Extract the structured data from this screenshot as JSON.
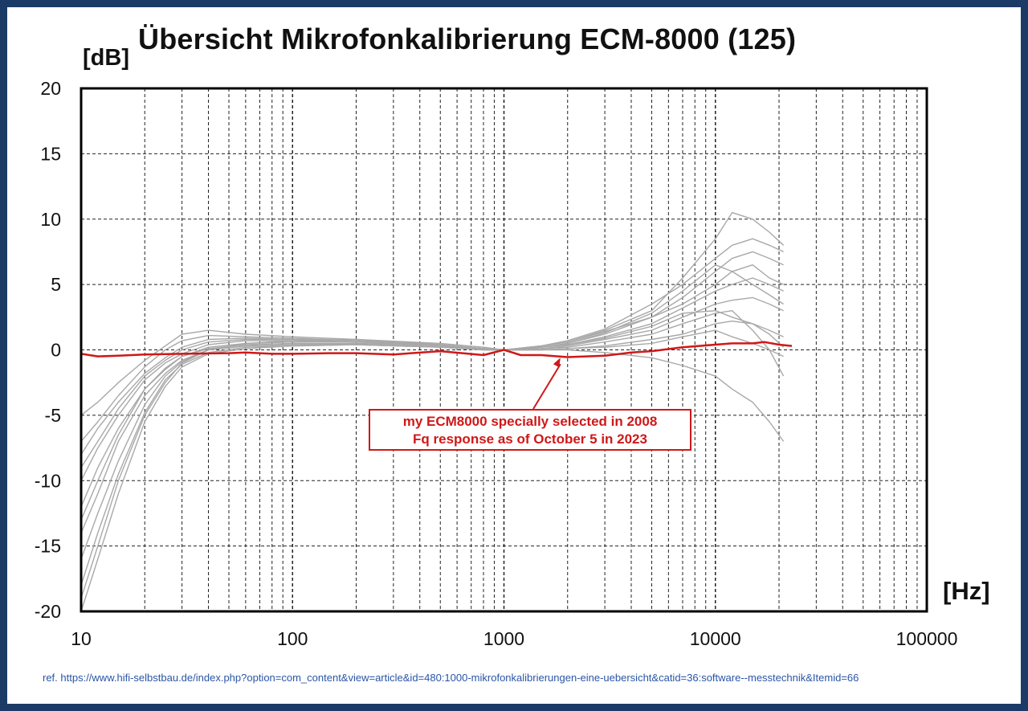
{
  "chart_data": {
    "type": "line",
    "title": "Übersicht Mikrofonkalibrierung ECM-8000 (125)",
    "ylabel": "[dB]",
    "xlabel": "[Hz]",
    "xscale": "log",
    "xlim": [
      10,
      100000
    ],
    "ylim": [
      -20,
      20
    ],
    "x_ticks": [
      10,
      100,
      1000,
      10000,
      100000
    ],
    "x_tick_labels": [
      "10",
      "100",
      "1000",
      "10000",
      "100000"
    ],
    "y_ticks": [
      20,
      15,
      10,
      5,
      0,
      -5,
      -10,
      -15,
      -20
    ],
    "y_tick_labels": [
      "20",
      "15",
      "10",
      "5",
      "0",
      "-5",
      "-10",
      "-15",
      "-20"
    ],
    "grid": true,
    "series": [
      {
        "color": "#d01818",
        "x": [
          10,
          12,
          15,
          20,
          30,
          50,
          60,
          80,
          100,
          150,
          200,
          300,
          500,
          800,
          1000,
          1200,
          1500,
          2000,
          3000,
          4000,
          5000,
          7000,
          10000,
          12000,
          15000,
          17000,
          20000,
          23000
        ],
        "y": [
          -0.3,
          -0.5,
          -0.45,
          -0.35,
          -0.3,
          -0.25,
          -0.2,
          -0.3,
          -0.3,
          -0.25,
          -0.25,
          -0.35,
          -0.1,
          -0.4,
          0.0,
          -0.4,
          -0.4,
          -0.55,
          -0.45,
          -0.2,
          -0.1,
          0.2,
          0.4,
          0.5,
          0.5,
          0.6,
          0.4,
          0.3
        ]
      },
      {
        "color": "#a8a8a8",
        "x": [
          10,
          12,
          15,
          20,
          25,
          30,
          40,
          60,
          100,
          200,
          500,
          800,
          1000,
          1500,
          2000,
          3000,
          5000,
          7000,
          10000,
          12000,
          15000,
          18000,
          21000
        ],
        "y": [
          -12,
          -9,
          -6,
          -3,
          -1.5,
          -0.5,
          0.1,
          0.4,
          0.5,
          0.5,
          0.3,
          0.1,
          0.0,
          0.1,
          0.3,
          0.8,
          1.5,
          2.5,
          3.5,
          3.8,
          4.0,
          3.5,
          3.0
        ]
      },
      {
        "color": "#a8a8a8",
        "x": [
          10,
          12,
          15,
          20,
          25,
          30,
          40,
          60,
          100,
          200,
          500,
          800,
          1000,
          1500,
          2000,
          3000,
          5000,
          7000,
          10000,
          12000,
          15000,
          18000,
          21000
        ],
        "y": [
          -19,
          -15,
          -10,
          -5,
          -2.5,
          -1.0,
          0.0,
          0.5,
          0.7,
          0.8,
          0.4,
          0.1,
          0.0,
          0.3,
          0.6,
          1.5,
          3.0,
          5.5,
          8.5,
          10.5,
          10.0,
          9.0,
          8.0
        ]
      },
      {
        "color": "#a8a8a8",
        "x": [
          10,
          12,
          15,
          20,
          25,
          30,
          40,
          60,
          100,
          200,
          500,
          800,
          1000,
          1500,
          2000,
          3000,
          5000,
          7000,
          10000,
          12000,
          15000,
          18000,
          21000
        ],
        "y": [
          -5,
          -4,
          -2.5,
          -0.8,
          0.3,
          1.2,
          1.5,
          1.2,
          1.0,
          0.8,
          0.5,
          0.2,
          0.0,
          0.0,
          0.1,
          0.2,
          0.5,
          1.0,
          1.5,
          1.0,
          0.5,
          0.0,
          -0.5
        ]
      },
      {
        "color": "#a8a8a8",
        "x": [
          10,
          12,
          15,
          20,
          25,
          30,
          40,
          60,
          100,
          200,
          500,
          800,
          1000,
          1500,
          2000,
          3000,
          5000,
          7000,
          10000,
          12000,
          15000,
          18000,
          21000
        ],
        "y": [
          -14,
          -11,
          -7,
          -3.5,
          -1.8,
          -0.8,
          0.0,
          0.3,
          0.4,
          0.4,
          0.2,
          0.0,
          0.0,
          0.2,
          0.5,
          1.2,
          2.5,
          4.0,
          6.0,
          7.0,
          7.5,
          7.0,
          6.5
        ]
      },
      {
        "color": "#a8a8a8",
        "x": [
          10,
          12,
          15,
          20,
          25,
          30,
          40,
          60,
          100,
          200,
          500,
          800,
          1000,
          1500,
          2000,
          3000,
          5000,
          7000,
          10000,
          12000,
          15000,
          18000,
          21000
        ],
        "y": [
          -8,
          -6,
          -4,
          -1.8,
          -0.6,
          0.2,
          0.8,
          0.9,
          0.8,
          0.7,
          0.4,
          0.1,
          0.0,
          0.0,
          0.0,
          -0.2,
          -0.6,
          -1.2,
          -2.0,
          -3.0,
          -4.0,
          -5.5,
          -7.0
        ]
      },
      {
        "color": "#a8a8a8",
        "x": [
          10,
          12,
          15,
          20,
          25,
          30,
          40,
          60,
          100,
          200,
          500,
          800,
          1000,
          1500,
          2000,
          3000,
          5000,
          7000,
          10000,
          12000,
          15000,
          18000,
          21000
        ],
        "y": [
          -16,
          -12.5,
          -8.5,
          -4.2,
          -2.0,
          -0.9,
          0.0,
          0.3,
          0.4,
          0.5,
          0.3,
          0.0,
          0.0,
          0.2,
          0.4,
          1.0,
          2.0,
          3.2,
          4.5,
          5.0,
          5.5,
          5.0,
          4.5
        ]
      },
      {
        "color": "#a8a8a8",
        "x": [
          10,
          12,
          15,
          20,
          25,
          30,
          40,
          60,
          100,
          200,
          500,
          800,
          1000,
          1500,
          2000,
          3000,
          5000,
          7000,
          10000,
          12000,
          15000,
          18000,
          21000
        ],
        "y": [
          -10,
          -7.5,
          -5,
          -2.3,
          -1.0,
          -0.3,
          0.4,
          0.7,
          0.7,
          0.6,
          0.4,
          0.1,
          0.0,
          0.2,
          0.4,
          0.9,
          1.8,
          2.8,
          3.0,
          2.5,
          2.0,
          1.5,
          1.0
        ]
      },
      {
        "color": "#a8a8a8",
        "x": [
          10,
          12,
          15,
          20,
          25,
          30,
          40,
          60,
          100,
          200,
          500,
          800,
          1000,
          1500,
          2000,
          3000,
          5000,
          7000,
          10000,
          12000,
          15000,
          18000,
          21000
        ],
        "y": [
          -18,
          -14,
          -9.5,
          -4.8,
          -2.3,
          -1.1,
          -0.2,
          0.2,
          0.3,
          0.4,
          0.2,
          0.0,
          0.0,
          0.3,
          0.7,
          1.6,
          3.5,
          5.0,
          7.0,
          8.0,
          8.5,
          8.0,
          7.5
        ]
      },
      {
        "color": "#a8a8a8",
        "x": [
          10,
          12,
          15,
          20,
          25,
          30,
          40,
          60,
          100,
          200,
          500,
          800,
          1000,
          1500,
          2000,
          3000,
          5000,
          7000,
          10000,
          12000,
          15000,
          18000,
          21000
        ],
        "y": [
          -7,
          -5.5,
          -3.5,
          -1.3,
          0.0,
          0.7,
          1.1,
          1.0,
          0.9,
          0.7,
          0.4,
          0.1,
          0.0,
          0.0,
          0.1,
          0.3,
          0.8,
          1.2,
          2.0,
          2.2,
          2.0,
          1.2,
          0.2
        ]
      },
      {
        "color": "#a8a8a8",
        "x": [
          10,
          12,
          15,
          20,
          25,
          30,
          40,
          60,
          100,
          200,
          500,
          800,
          1000,
          1500,
          2000,
          3000,
          5000,
          7000,
          10000,
          12000,
          15000,
          18000,
          21000
        ],
        "y": [
          -13,
          -10,
          -6.5,
          -3.0,
          -1.4,
          -0.5,
          0.2,
          0.5,
          0.6,
          0.6,
          0.3,
          0.1,
          0.0,
          0.2,
          0.5,
          1.3,
          2.8,
          4.5,
          6.5,
          6.0,
          5.0,
          4.2,
          3.5
        ]
      },
      {
        "color": "#a8a8a8",
        "x": [
          10,
          12,
          15,
          20,
          25,
          30,
          40,
          60,
          100,
          200,
          500,
          800,
          1000,
          1500,
          2000,
          3000,
          5000,
          7000,
          10000,
          12000,
          15000,
          18000,
          21000
        ],
        "y": [
          -20,
          -16,
          -11,
          -5.5,
          -2.8,
          -1.3,
          -0.3,
          0.1,
          0.3,
          0.4,
          0.2,
          0.0,
          0.0,
          0.3,
          0.6,
          1.4,
          2.5,
          3.5,
          5.0,
          6.0,
          6.5,
          5.5,
          5.0
        ]
      },
      {
        "color": "#a8a8a8",
        "x": [
          10,
          12,
          15,
          20,
          25,
          30,
          40,
          60,
          100,
          200,
          500,
          800,
          1000,
          1500,
          2000,
          3000,
          5000,
          7000,
          10000,
          12000,
          15000,
          18000,
          21000
        ],
        "y": [
          -9,
          -7,
          -4.5,
          -2.0,
          -0.8,
          0.0,
          0.6,
          0.8,
          0.8,
          0.6,
          0.3,
          0.1,
          0.0,
          0.1,
          0.2,
          0.6,
          1.2,
          2.0,
          2.8,
          3.0,
          1.5,
          0.0,
          -2.0
        ]
      }
    ]
  },
  "annotation": {
    "line1": "my ECM8000 specially selected in 2008",
    "line2": "Fq response as of October 5 in 2023",
    "target_x": 1850,
    "target_y": -0.6
  },
  "footer": {
    "ref": "ref. https://www.hifi-selbstbau.de/index.php?option=com_content&view=article&id=480:1000-mikrofonkalibrierungen-eine-uebersicht&catid=36:software--messtechnik&Itemid=66"
  },
  "colors": {
    "frame": "#1b3a66",
    "highlight": "#d01818",
    "other_curves": "#a8a8a8",
    "ref_link": "#2a55a6"
  }
}
